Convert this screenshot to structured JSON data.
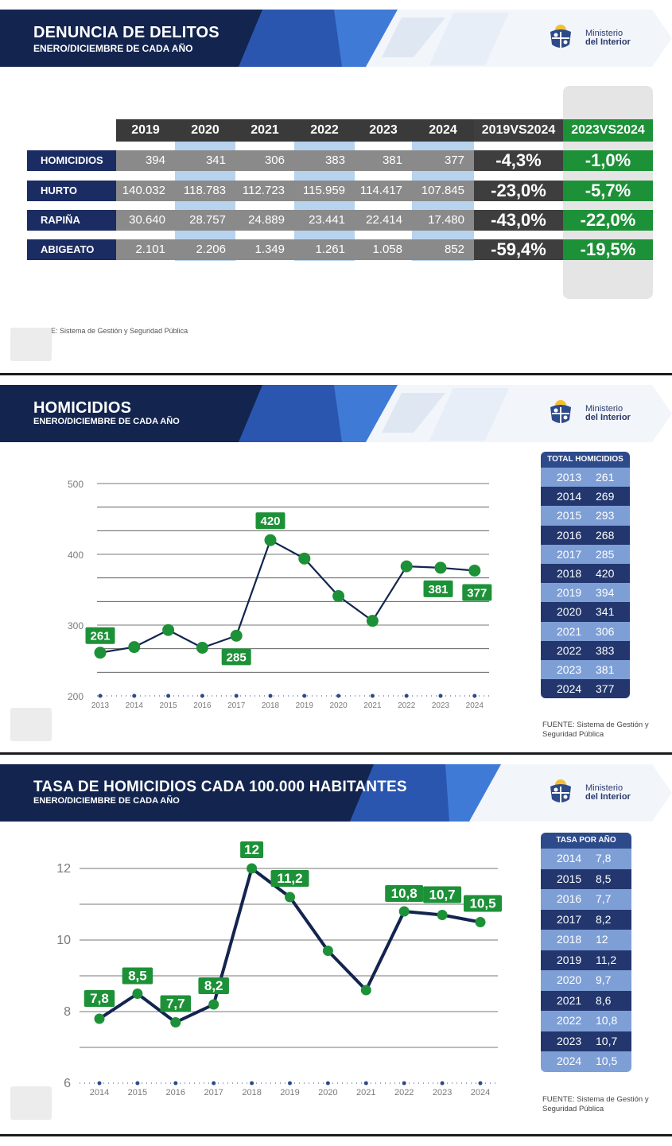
{
  "logo": {
    "line1": "Ministerio",
    "line2": "del Interior"
  },
  "panel1": {
    "title": "DENUNCIA DE DELITOS",
    "subtitle": "ENERO/DICIEMBRE DE CADA AÑO",
    "columns": [
      "2019",
      "2020",
      "2021",
      "2022",
      "2023",
      "2024",
      "2019VS2024",
      "2023VS2024"
    ],
    "rows": [
      {
        "label": "HOMICIDIOS",
        "values": [
          "394",
          "341",
          "306",
          "383",
          "381",
          "377"
        ],
        "vs1": "-4,3%",
        "vs2": "-1,0%"
      },
      {
        "label": "HURTO",
        "values": [
          "140.032",
          "118.783",
          "112.723",
          "115.959",
          "114.417",
          "107.845"
        ],
        "vs1": "-23,0%",
        "vs2": "-5,7%"
      },
      {
        "label": "RAPIÑA",
        "values": [
          "30.640",
          "28.757",
          "24.889",
          "23.441",
          "22.414",
          "17.480"
        ],
        "vs1": "-43,0%",
        "vs2": "-22,0%"
      },
      {
        "label": "ABIGEATO",
        "values": [
          "2.101",
          "2.206",
          "1.349",
          "1.261",
          "1.058",
          "852"
        ],
        "vs1": "-59,4%",
        "vs2": "-19,5%"
      }
    ],
    "source": "FUENTE: Sistema de Gestión y Seguridad Pública"
  },
  "panel2": {
    "title": "HOMICIDIOS",
    "subtitle": "ENERO/DICIEMBRE DE CADA AÑO",
    "table_header": "TOTAL HOMICIDIOS",
    "source_line1": "FUENTE: Sistema de Gestión y",
    "source_line2": "Seguridad Pública"
  },
  "panel3": {
    "title": "TASA DE HOMICIDIOS CADA 100.000 HABITANTES",
    "subtitle": "ENERO/DICIEMBRE DE CADA AÑO",
    "table_header": "TASA POR AÑO",
    "source_line1": "FUENTE: Sistema de Gestión y",
    "source_line2": "Seguridad Pública"
  },
  "chart_data": [
    {
      "type": "line",
      "title": "HOMICIDIOS",
      "x": [
        "2013",
        "2014",
        "2015",
        "2016",
        "2017",
        "2018",
        "2019",
        "2020",
        "2021",
        "2022",
        "2023",
        "2024"
      ],
      "values": [
        261,
        269,
        293,
        268,
        285,
        420,
        394,
        341,
        306,
        383,
        381,
        377
      ],
      "display": [
        "261",
        "269",
        "293",
        "268",
        "285",
        "420",
        "394",
        "341",
        "306",
        "383",
        "381",
        "377"
      ],
      "labeled": [
        "261",
        "285",
        "420",
        "381",
        "377"
      ],
      "yticks": [
        "200",
        "300",
        "400",
        "500"
      ],
      "ylim": [
        200,
        500
      ],
      "grid": true,
      "line_color": "#13254f",
      "marker_color": "#1d9137"
    },
    {
      "type": "line",
      "title": "TASA DE HOMICIDIOS CADA 100.000 HABITANTES",
      "x": [
        "2014",
        "2015",
        "2016",
        "2017",
        "2018",
        "2019",
        "2020",
        "2021",
        "2022",
        "2023",
        "2024"
      ],
      "values": [
        7.8,
        8.5,
        7.7,
        8.2,
        12,
        11.2,
        9.7,
        8.6,
        10.8,
        10.7,
        10.5
      ],
      "display": [
        "7,8",
        "8,5",
        "7,7",
        "8,2",
        "12",
        "11,2",
        "9,7",
        "8,6",
        "10,8",
        "10,7",
        "10,5"
      ],
      "labeled": [
        "7,8",
        "8,5",
        "7,7",
        "8,2",
        "12",
        "11,2",
        "10,8",
        "10,7",
        "10,5"
      ],
      "yticks": [
        "6",
        "8",
        "10",
        "12"
      ],
      "ylim": [
        6,
        12
      ],
      "grid": true,
      "line_color": "#13254f",
      "marker_color": "#1d9137"
    }
  ]
}
